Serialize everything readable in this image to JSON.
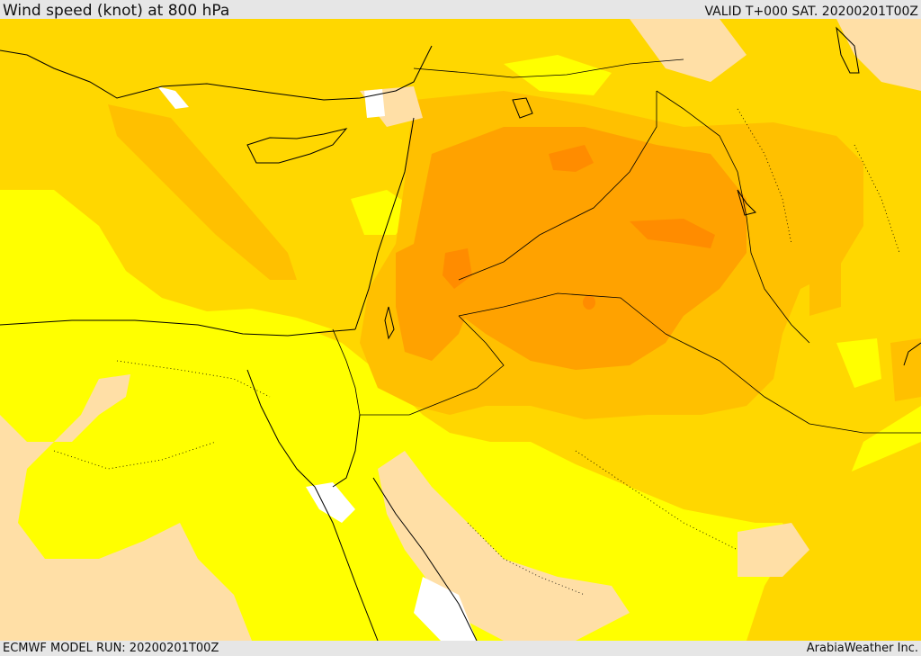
{
  "header": {
    "title": "Wind speed (knot) at 800 hPa",
    "valid_time": "VALID T+000 SAT. 20200201T00Z"
  },
  "footer": {
    "model_run": "ECMWF MODEL RUN: 20200201T00Z",
    "credit": "ArabiaWeather Inc."
  },
  "map": {
    "variable": "wind speed",
    "units": "knot",
    "level": "800 hPa",
    "colors": {
      "calm": "#ffffff",
      "very_low": "#ffdfa6",
      "low": "#ffff00",
      "moderate": "#ffd700",
      "fresh": "#ffc000",
      "strong": "#ffa200",
      "very_strong": "#ff8c00",
      "gale": "#ff6a00"
    }
  }
}
